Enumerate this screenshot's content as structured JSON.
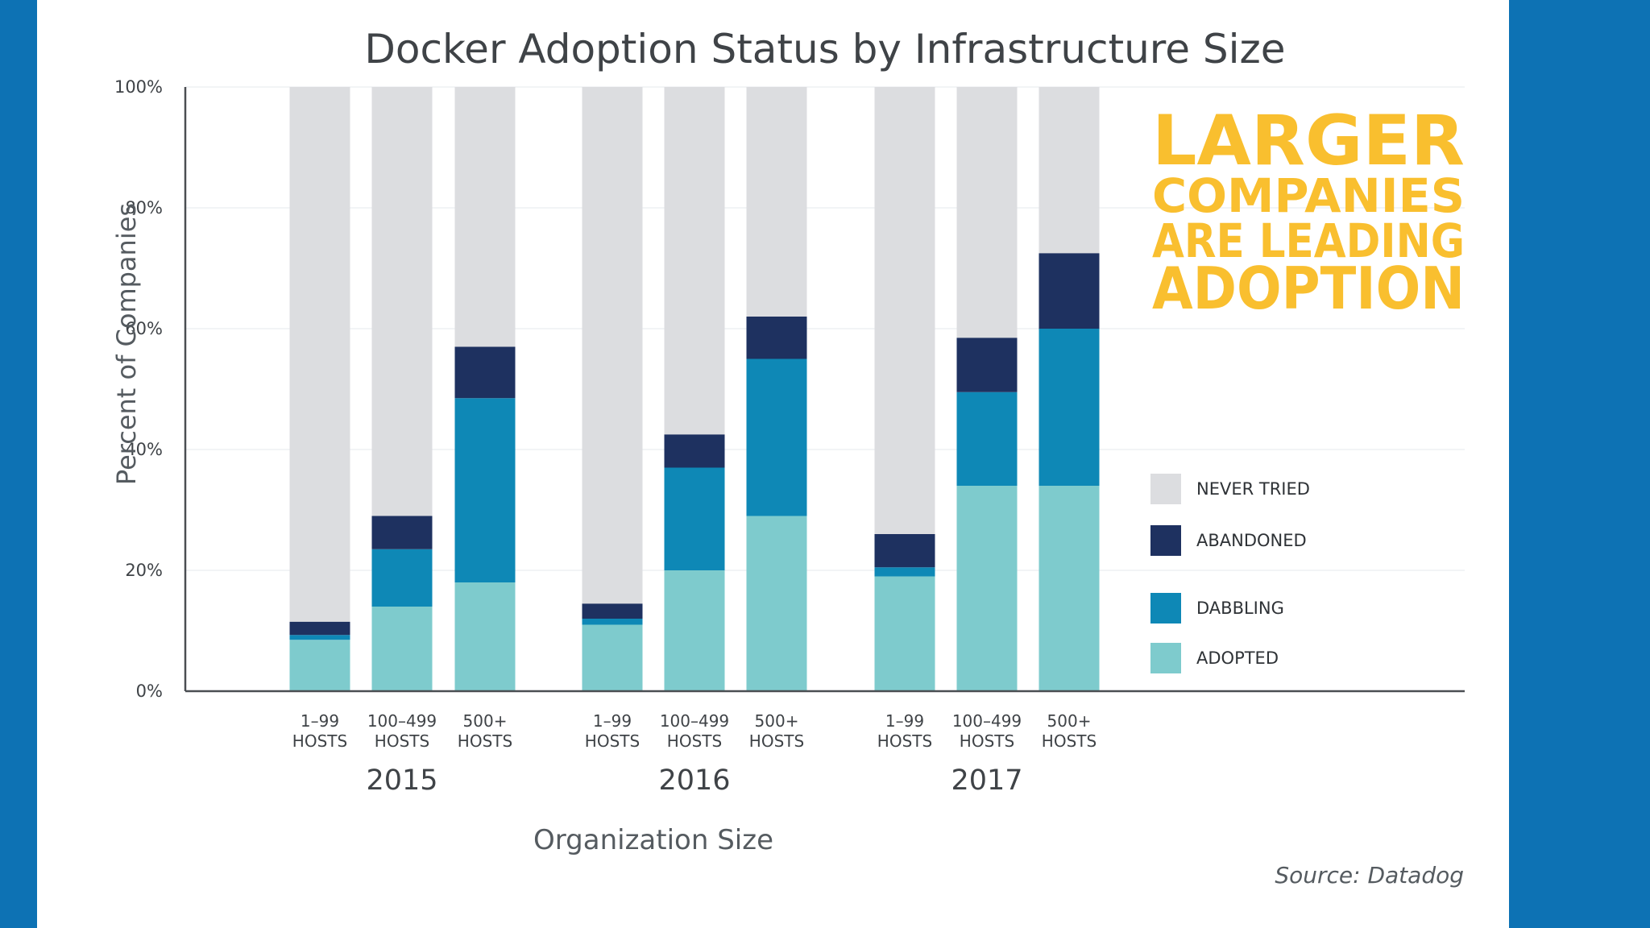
{
  "chart_data": {
    "type": "bar",
    "stacked": true,
    "title": "Docker Adoption Status by Infrastructure Size",
    "ylabel": "Percent of Companies",
    "xlabel": "Organization Size",
    "ylim": [
      0,
      100
    ],
    "yticks": [
      "0%",
      "20%",
      "40%",
      "60%",
      "80%",
      "100%"
    ],
    "grid": true,
    "groups": [
      "2015",
      "2016",
      "2017"
    ],
    "categories": [
      {
        "line1": "1–99",
        "line2": "HOSTS",
        "group": "2015"
      },
      {
        "line1": "100–499",
        "line2": "HOSTS",
        "group": "2015"
      },
      {
        "line1": "500+",
        "line2": "HOSTS",
        "group": "2015"
      },
      {
        "line1": "1–99",
        "line2": "HOSTS",
        "group": "2016"
      },
      {
        "line1": "100–499",
        "line2": "HOSTS",
        "group": "2016"
      },
      {
        "line1": "500+",
        "line2": "HOSTS",
        "group": "2016"
      },
      {
        "line1": "1–99",
        "line2": "HOSTS",
        "group": "2017"
      },
      {
        "line1": "100–499",
        "line2": "HOSTS",
        "group": "2017"
      },
      {
        "line1": "500+",
        "line2": "HOSTS",
        "group": "2017"
      }
    ],
    "series": [
      {
        "name": "ADOPTED",
        "color": "#7ecbcd",
        "values": [
          8.5,
          14,
          18,
          11,
          20,
          29,
          19,
          34,
          34
        ]
      },
      {
        "name": "DABBLING",
        "color": "#0e88b6",
        "values": [
          0.8,
          9.5,
          30.5,
          1,
          17,
          26,
          1.5,
          15.5,
          26
        ]
      },
      {
        "name": "ABANDONED",
        "color": "#1e3160",
        "values": [
          2.2,
          5.5,
          8.5,
          2.5,
          5.5,
          7,
          5.5,
          9,
          12.5
        ]
      },
      {
        "name": "NEVER TRIED",
        "color": "#dcdde0",
        "values": [
          88.5,
          71,
          43,
          85.5,
          57.5,
          38,
          74,
          41.5,
          27.5
        ]
      }
    ],
    "legend": {
      "position": "right",
      "order": [
        "NEVER TRIED",
        "ABANDONED",
        "DABBLING",
        "ADOPTED"
      ]
    }
  },
  "callout": {
    "lines": [
      "LARGER",
      "COMPANIES",
      "ARE LEADING",
      "ADOPTION"
    ],
    "color": "#f9bf2f"
  },
  "source": "Source: Datadog",
  "colors": {
    "frame": "#0d72b4",
    "background": "#ffffff"
  }
}
